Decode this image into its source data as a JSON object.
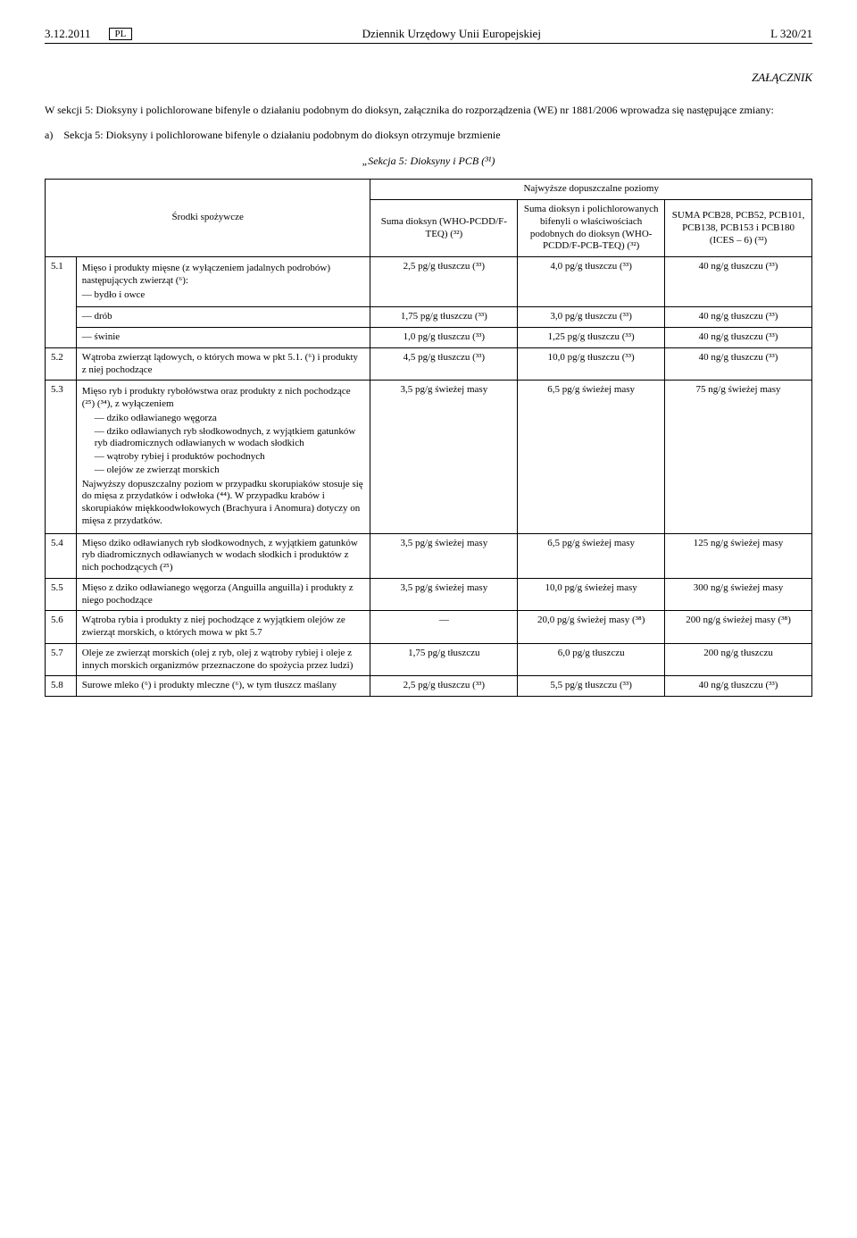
{
  "header": {
    "date": "3.12.2011",
    "lang": "PL",
    "title": "Dziennik Urzędowy Unii Europejskiej",
    "page": "L 320/21"
  },
  "zalacznik": "ZAŁĄCZNIK",
  "intro": "W sekcji 5: Dioksyny i polichlorowane bifenyle o działaniu podobnym do dioksyn, załącznika do rozporządzenia (WE) nr 1881/2006 wprowadza się następujące zmiany:",
  "sub_a": "a) Sekcja 5: Dioksyny i polichlorowane bifenyle o działaniu podobnym do dioksyn otrzymuje brzmienie",
  "section_title": "„Sekcja 5:  Dioksyny i PCB (³¹)",
  "table": {
    "top_header": "Najwyższe dopuszczalne poziomy",
    "col_food_header": "Środki spożywcze",
    "col_a": "Suma dioksyn (WHO-PCDD/F-TEQ) (³²)",
    "col_b": "Suma dioksyn i polichlorowanych bifenyli o właściwościach podobnych do dioksyn (WHO-PCDD/F-PCB-TEQ) (³²)",
    "col_c": "SUMA PCB28, PCB52, PCB101, PCB138, PCB153 i PCB180 (ICES – 6) (³²)",
    "rows": [
      {
        "num": "5.1",
        "food_lead": "Mięso i produkty mięsne (z wyłączeniem jadalnych podrobów) następujących zwierząt (⁶):",
        "subrows": [
          {
            "label": "— bydło i owce",
            "a": "2,5 pg/g tłuszczu (³³)",
            "b": "4,0 pg/g tłuszczu (³³)",
            "c": "40 ng/g tłuszczu (³³)"
          },
          {
            "label": "— drób",
            "a": "1,75 pg/g tłuszczu (³³)",
            "b": "3,0 pg/g tłuszczu (³³)",
            "c": "40 ng/g tłuszczu (³³)"
          },
          {
            "label": "— świnie",
            "a": "1,0 pg/g tłuszczu (³³)",
            "b": "1,25 pg/g tłuszczu (³³)",
            "c": "40 ng/g tłuszczu (³³)"
          }
        ]
      },
      {
        "num": "5.2",
        "food": "Wątroba zwierząt lądowych, o których mowa w pkt 5.1. (⁶) i produkty z niej pochodzące",
        "a": "4,5 pg/g tłuszczu (³³)",
        "b": "10,0 pg/g tłuszczu (³³)",
        "c": "40 ng/g tłuszczu (³³)"
      },
      {
        "num": "5.3",
        "food_html": true,
        "a": "3,5 pg/g świeżej masy",
        "b": "6,5 pg/g świeżej masy",
        "c": "75 ng/g świeżej masy"
      },
      {
        "num": "5.4",
        "food": "Mięso dziko odławianych ryb słodkowodnych, z wyjątkiem gatunków ryb diadromicznych odławianych w wodach słodkich i produktów z nich pochodzących (²⁵)",
        "a": "3,5 pg/g świeżej masy",
        "b": "6,5 pg/g świeżej masy",
        "c": "125 ng/g świeżej masy"
      },
      {
        "num": "5.5",
        "food": "Mięso z dziko odławianego węgorza (Anguilla anguilla) i produkty z niego pochodzące",
        "a": "3,5 pg/g świeżej masy",
        "b": "10,0 pg/g świeżej masy",
        "c": "300 ng/g świeżej masy"
      },
      {
        "num": "5.6",
        "food": "Wątroba rybia i produkty z niej pochodzące z wyjątkiem olejów ze zwierząt morskich, o których mowa w pkt 5.7",
        "a": "—",
        "b": "20,0 pg/g świeżej masy (³⁸)",
        "c": "200 ng/g świeżej masy (³⁸)"
      },
      {
        "num": "5.7",
        "food": "Oleje ze zwierząt morskich (olej z ryb, olej z wątroby rybiej i oleje z innych morskich organizmów przeznaczone do spożycia przez ludzi)",
        "a": "1,75 pg/g tłuszczu",
        "b": "6,0 pg/g tłuszczu",
        "c": "200 ng/g tłuszczu"
      },
      {
        "num": "5.8",
        "food": "Surowe mleko (⁶) i produkty mleczne (⁶), w tym tłuszcz maślany",
        "a": "2,5 pg/g tłuszczu (³³)",
        "b": "5,5 pg/g tłuszczu (³³)",
        "c": "40 ng/g tłuszczu (³³)"
      }
    ],
    "row53_food": {
      "lead": "Mięso ryb i produkty rybołówstwa oraz produkty z nich pochodzące (²⁵) (³⁴), z wyłączeniem",
      "items": [
        "dziko odławianego węgorza",
        "dziko odławianych ryb słodkowodnych, z wyjątkiem gatunków ryb diadromicznych odławianych w wodach słodkich",
        "wątroby rybiej i produktów pochodnych",
        "olejów ze zwierząt morskich"
      ],
      "tail": "Najwyższy dopuszczalny poziom w przypadku skorupiaków stosuje się do mięsa z przydatków i odwłoka (⁴⁴). W przypadku krabów i skorupiaków miękkoodwłokowych (Brachyura i Anomura) dotyczy on mięsa z przydatków."
    }
  }
}
